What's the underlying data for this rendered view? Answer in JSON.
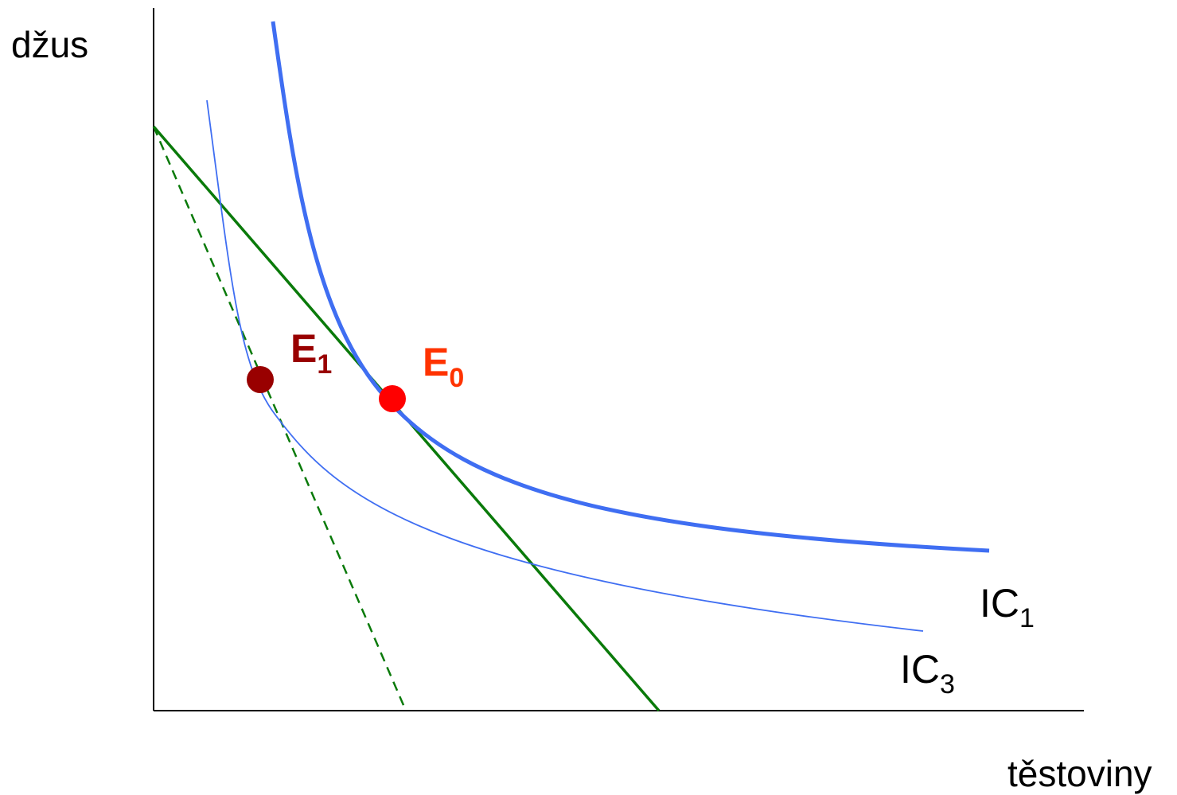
{
  "axes": {
    "y_label": "džus",
    "x_label": "těstoviny"
  },
  "curves": {
    "ic1": {
      "label_main": "IC",
      "label_sub": "1",
      "color": "#3f6ef2"
    },
    "ic3": {
      "label_main": "IC",
      "label_sub": "3",
      "color": "#3f6ef2"
    }
  },
  "budget_lines": {
    "original": {
      "color": "#0a7a0a",
      "style": "solid"
    },
    "rotated": {
      "color": "#0a7a0a",
      "style": "dashed"
    }
  },
  "points": {
    "e0": {
      "label_main": "E",
      "label_sub": "0",
      "color": "#ff0000",
      "label_color": "#ff3300"
    },
    "e1": {
      "label_main": "E",
      "label_sub": "1",
      "color": "#990000",
      "label_color": "#990000"
    }
  }
}
